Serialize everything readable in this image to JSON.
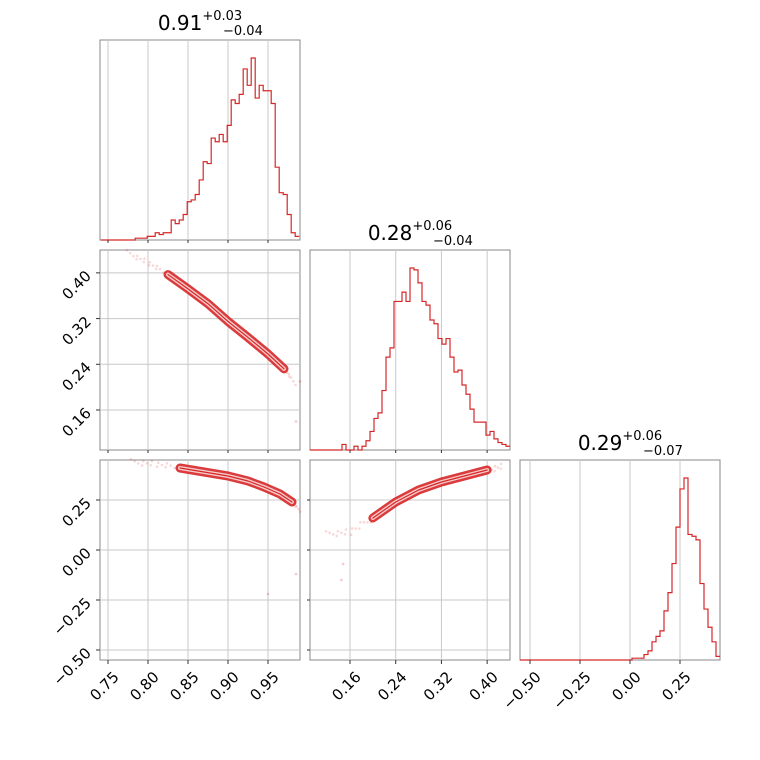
{
  "chart_data": {
    "type": "corner",
    "color": "#d62728",
    "grid": true,
    "parameters": [
      {
        "median": "0.91",
        "plus": "+0.03",
        "minus": "−0.04"
      },
      {
        "median": "0.28",
        "plus": "+0.06",
        "minus": "−0.04"
      },
      {
        "median": "0.29",
        "plus": "+0.06",
        "minus": "−0.07"
      }
    ],
    "ranges": [
      [
        0.74,
        0.99
      ],
      [
        0.09,
        0.44
      ],
      [
        -0.55,
        0.45
      ]
    ],
    "ticks": {
      "x0": [
        0.75,
        0.8,
        0.85,
        0.9,
        0.95
      ],
      "x1": [
        0.16,
        0.24,
        0.32,
        0.4
      ],
      "x2": [
        -0.5,
        -0.25,
        0.0,
        0.25
      ],
      "y1": [
        0.4,
        0.32,
        0.24,
        0.16
      ],
      "y2": [
        0.25,
        0.0,
        -0.25,
        -0.5
      ]
    },
    "tick_labels": {
      "x0": [
        "0.75",
        "0.80",
        "0.85",
        "0.90",
        "0.95"
      ],
      "x1": [
        "0.16",
        "0.24",
        "0.32",
        "0.40"
      ],
      "x2": [
        "−0.50",
        "−0.25",
        "0.00",
        "0.25"
      ],
      "y1": [
        "0.40",
        "0.32",
        "0.24",
        "0.16"
      ],
      "y2": [
        "0.25",
        "0.00",
        "−0.25",
        "−0.50"
      ]
    },
    "hist0": {
      "edges": [
        0.741,
        0.744,
        0.749,
        0.754,
        0.759,
        0.764,
        0.769,
        0.774,
        0.779,
        0.784,
        0.789,
        0.794,
        0.799,
        0.804,
        0.809,
        0.814,
        0.819,
        0.824,
        0.829,
        0.834,
        0.839,
        0.844,
        0.849,
        0.854,
        0.859,
        0.864,
        0.869,
        0.874,
        0.879,
        0.884,
        0.889,
        0.894,
        0.899,
        0.904,
        0.909,
        0.914,
        0.919,
        0.924,
        0.929,
        0.934,
        0.939,
        0.944,
        0.949,
        0.954,
        0.959,
        0.964,
        0.969,
        0.974,
        0.979,
        0.984,
        0.989
      ],
      "values": [
        0,
        0,
        0,
        0,
        0,
        0,
        0,
        0,
        0,
        1,
        1,
        1,
        2,
        2,
        4,
        3,
        4,
        4,
        11,
        9,
        11,
        14,
        21,
        22,
        25,
        33,
        43,
        42,
        56,
        54,
        58,
        54,
        63,
        77,
        75,
        80,
        94,
        85,
        100,
        78,
        85,
        82,
        82,
        75,
        40,
        26,
        25,
        14,
        4,
        2
      ]
    },
    "hist1": {
      "edges": [
        0.09,
        0.097,
        0.104,
        0.111,
        0.118,
        0.125,
        0.132,
        0.139,
        0.146,
        0.153,
        0.16,
        0.167,
        0.174,
        0.181,
        0.188,
        0.195,
        0.202,
        0.209,
        0.216,
        0.223,
        0.23,
        0.237,
        0.244,
        0.251,
        0.258,
        0.265,
        0.272,
        0.279,
        0.286,
        0.293,
        0.3,
        0.307,
        0.314,
        0.321,
        0.328,
        0.335,
        0.342,
        0.349,
        0.356,
        0.363,
        0.37,
        0.377,
        0.384,
        0.391,
        0.398,
        0.405,
        0.412,
        0.419,
        0.426,
        0.433,
        0.44
      ],
      "values": [
        0,
        0,
        0,
        0,
        0,
        0,
        0,
        0,
        3,
        0,
        0,
        2,
        0,
        2,
        5,
        10,
        17,
        20,
        32,
        50,
        55,
        80,
        80,
        85,
        80,
        98,
        97,
        90,
        80,
        78,
        70,
        68,
        60,
        57,
        60,
        50,
        42,
        43,
        35,
        30,
        22,
        15,
        15,
        15,
        8,
        10,
        6,
        4,
        3,
        2
      ]
    },
    "hist2": {
      "edges": [
        -0.55,
        -0.53,
        -0.51,
        -0.49,
        -0.47,
        -0.45,
        -0.43,
        -0.41,
        -0.39,
        -0.37,
        -0.35,
        -0.33,
        -0.31,
        -0.29,
        -0.27,
        -0.25,
        -0.23,
        -0.21,
        -0.19,
        -0.17,
        -0.15,
        -0.13,
        -0.11,
        -0.09,
        -0.07,
        -0.05,
        -0.03,
        -0.01,
        0.01,
        0.03,
        0.05,
        0.07,
        0.09,
        0.11,
        0.13,
        0.15,
        0.17,
        0.19,
        0.21,
        0.23,
        0.25,
        0.27,
        0.29,
        0.31,
        0.33,
        0.35,
        0.37,
        0.39,
        0.41,
        0.43,
        0.45
      ],
      "values": [
        0,
        0,
        0,
        0,
        0,
        0,
        0,
        0,
        0,
        0,
        0,
        0,
        0,
        0,
        0,
        0,
        0,
        0,
        0,
        0,
        0,
        0,
        0,
        0,
        0,
        0,
        0,
        0,
        1,
        1,
        1,
        3,
        5,
        10,
        13,
        16,
        27,
        37,
        53,
        73,
        94,
        100,
        69,
        68,
        66,
        42,
        28,
        18,
        10,
        2
      ]
    },
    "scatter_10": {
      "center": [
        [
          0.775,
          0.435
        ],
        [
          0.8,
          0.418
        ],
        [
          0.825,
          0.397
        ],
        [
          0.85,
          0.372
        ],
        [
          0.875,
          0.346
        ],
        [
          0.9,
          0.315
        ],
        [
          0.925,
          0.287
        ],
        [
          0.95,
          0.258
        ],
        [
          0.97,
          0.232
        ],
        [
          0.985,
          0.205
        ]
      ],
      "outliers": [
        [
          0.985,
          0.14
        ],
        [
          0.99,
          0.21
        ]
      ]
    },
    "scatter_20": {
      "center": [
        [
          0.78,
          0.44
        ],
        [
          0.81,
          0.43
        ],
        [
          0.84,
          0.41
        ],
        [
          0.87,
          0.39
        ],
        [
          0.9,
          0.37
        ],
        [
          0.925,
          0.345
        ],
        [
          0.945,
          0.315
        ],
        [
          0.965,
          0.28
        ],
        [
          0.98,
          0.24
        ],
        [
          0.99,
          0.2
        ]
      ],
      "outliers": [
        [
          0.985,
          -0.12
        ],
        [
          0.95,
          -0.22
        ]
      ]
    },
    "scatter_21": {
      "center": [
        [
          0.12,
          0.08
        ],
        [
          0.16,
          0.09
        ],
        [
          0.2,
          0.16
        ],
        [
          0.24,
          0.24
        ],
        [
          0.28,
          0.3
        ],
        [
          0.32,
          0.34
        ],
        [
          0.36,
          0.37
        ],
        [
          0.4,
          0.4
        ],
        [
          0.43,
          0.42
        ]
      ],
      "outliers": [
        [
          0.145,
          -0.15
        ],
        [
          0.148,
          -0.07
        ]
      ]
    }
  }
}
